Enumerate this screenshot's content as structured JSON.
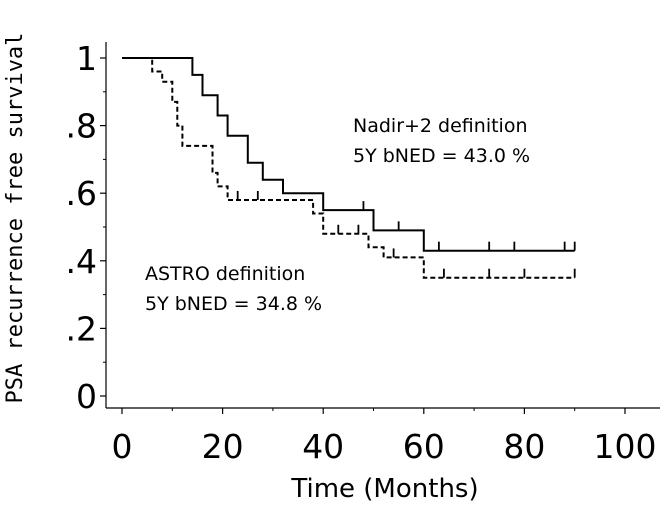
{
  "chart_data": {
    "type": "line",
    "title": "",
    "xlabel": "Time (Months)",
    "ylabel": "PSA recurrence free survival",
    "xlim": [
      0,
      100
    ],
    "ylim": [
      0,
      1
    ],
    "x_ticks": [
      0,
      20,
      40,
      60,
      80,
      100
    ],
    "x_tick_labels": [
      "0",
      "20",
      "40",
      "60",
      "80",
      "100"
    ],
    "y_ticks": [
      0,
      0.2,
      0.4,
      0.6,
      0.8,
      1
    ],
    "y_tick_labels": [
      "0",
      ".2",
      ".4",
      ".6",
      ".8",
      "1"
    ],
    "grid": false,
    "legend": "none",
    "series": [
      {
        "name": "Nadir+2 definition",
        "style": "solid",
        "color": "#000000",
        "steps": [
          [
            0,
            1.0
          ],
          [
            14,
            1.0
          ],
          [
            14,
            0.95
          ],
          [
            16,
            0.95
          ],
          [
            16,
            0.89
          ],
          [
            19,
            0.89
          ],
          [
            19,
            0.83
          ],
          [
            21,
            0.83
          ],
          [
            21,
            0.77
          ],
          [
            25,
            0.77
          ],
          [
            25,
            0.69
          ],
          [
            28,
            0.69
          ],
          [
            28,
            0.64
          ],
          [
            32,
            0.64
          ],
          [
            32,
            0.6
          ],
          [
            40,
            0.6
          ],
          [
            40,
            0.55
          ],
          [
            50,
            0.55
          ],
          [
            50,
            0.49
          ],
          [
            60,
            0.49
          ],
          [
            60,
            0.43
          ],
          [
            90,
            0.43
          ]
        ],
        "censored": [
          [
            48,
            0.55
          ],
          [
            55,
            0.49
          ],
          [
            63,
            0.43
          ],
          [
            73,
            0.43
          ],
          [
            78,
            0.43
          ],
          [
            88,
            0.43
          ],
          [
            90,
            0.43
          ]
        ]
      },
      {
        "name": "ASTRO definition",
        "style": "dashed",
        "color": "#000000",
        "steps": [
          [
            0,
            1.0
          ],
          [
            6,
            1.0
          ],
          [
            6,
            0.96
          ],
          [
            8,
            0.96
          ],
          [
            8,
            0.93
          ],
          [
            10,
            0.93
          ],
          [
            10,
            0.87
          ],
          [
            11,
            0.87
          ],
          [
            11,
            0.8
          ],
          [
            12,
            0.8
          ],
          [
            12,
            0.74
          ],
          [
            18,
            0.74
          ],
          [
            18,
            0.66
          ],
          [
            19,
            0.66
          ],
          [
            19,
            0.62
          ],
          [
            21,
            0.62
          ],
          [
            21,
            0.58
          ],
          [
            38,
            0.58
          ],
          [
            38,
            0.54
          ],
          [
            40,
            0.54
          ],
          [
            40,
            0.48
          ],
          [
            49,
            0.48
          ],
          [
            49,
            0.44
          ],
          [
            52,
            0.44
          ],
          [
            52,
            0.41
          ],
          [
            60,
            0.41
          ],
          [
            60,
            0.35
          ],
          [
            90,
            0.35
          ]
        ],
        "censored": [
          [
            23,
            0.58
          ],
          [
            27,
            0.58
          ],
          [
            43,
            0.48
          ],
          [
            47,
            0.48
          ],
          [
            54,
            0.41
          ],
          [
            64,
            0.35
          ],
          [
            73,
            0.35
          ],
          [
            80,
            0.35
          ],
          [
            90,
            0.35
          ]
        ]
      }
    ],
    "annotations": [
      {
        "lines": [
          "Nadir+2 definition",
          "5Y bNED  = 43.0 %"
        ],
        "x": 53,
        "y": 0.82
      },
      {
        "lines": [
          "ASTRO definition",
          "5Y bNED  = 34.8 %"
        ],
        "x": 5,
        "y": 0.36
      }
    ]
  }
}
